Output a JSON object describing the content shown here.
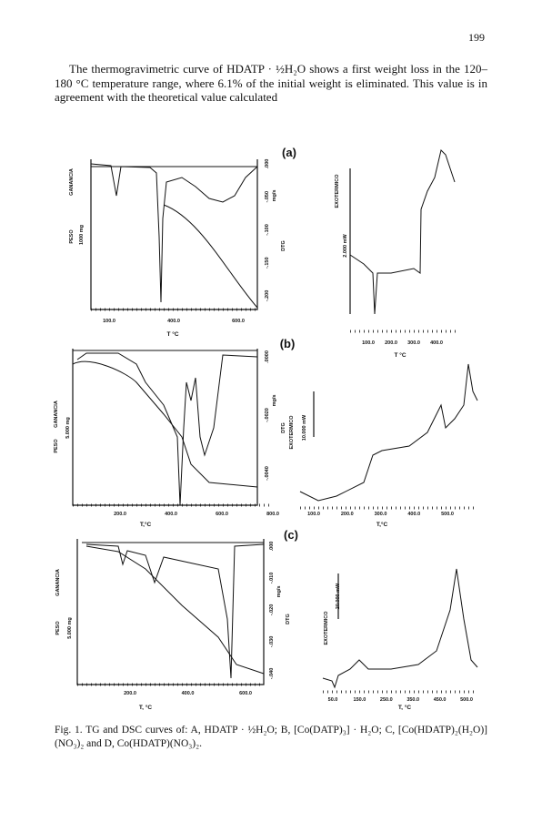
{
  "header": {
    "page_number": "199"
  },
  "body": {
    "paragraph": "The thermogravimetric curve of HDATP · ½H₂O shows a first weight loss in the 120–180 °C temperature range, where 6.1% of the initial weight is eliminated. This value is in agreement with the theoretical value calculated"
  },
  "figure": {
    "panels": [
      {
        "label": "(a)",
        "tg": {
          "x_ticks": [
            "100.0",
            "400.0",
            "600.0"
          ],
          "x_label": "T °C",
          "y_label": "PESO",
          "y_direction": "GANANCIA",
          "y_scale": "1000 mg",
          "dtg_ticks": [
            ".000",
            "-.050",
            "-.100",
            "-.150",
            "-.200"
          ],
          "dtg_units": "mg/s",
          "dtg_label": "DTG"
        },
        "dsc": {
          "x_ticks": [
            "100.0",
            "200.0",
            "300.0",
            "400.0"
          ],
          "x_label": "T °C",
          "y_label": "EXOTERMICO",
          "y_scale": "2.000 mW"
        }
      },
      {
        "label": "(b)",
        "tg": {
          "x_ticks": [
            "200.0",
            "400.0",
            "600.0",
            "800.0"
          ],
          "x_label": "T,°C",
          "y_label": "PESO",
          "y_direction": "GANANCIA",
          "y_scale": "5.000 mg",
          "dtg_ticks": [
            ".0000",
            "-.0020",
            "-.0040"
          ],
          "dtg_units": "mg/s",
          "dtg_label": "DTG"
        },
        "dsc": {
          "x_ticks": [
            "100.0",
            "200.0",
            "300.0",
            "400.0",
            "500.0"
          ],
          "x_label": "T,°C",
          "y_label": "EXOTERMICO",
          "y_scale": "10.000 mW"
        }
      },
      {
        "label": "(c)",
        "tg": {
          "x_ticks": [
            "200.0",
            "400.0",
            "600.0"
          ],
          "x_label": "T, °C",
          "y_label": "PESO",
          "y_direction": "GANANCIA",
          "y_scale": "5.000 mg",
          "dtg_ticks": [
            ".000",
            "-.010",
            "-.020",
            "-.030",
            "-.040"
          ],
          "dtg_units": "mg/s",
          "dtg_label": "DTG"
        },
        "dsc": {
          "x_ticks": [
            "50.0",
            "150.0",
            "250.0",
            "350.0",
            "450.0",
            "500.0"
          ],
          "x_label": "T, °C",
          "y_label": "EXOTERMICO",
          "y_scale": "20.000 mW"
        }
      }
    ],
    "caption": "Fig. 1. TG and DSC curves of: A, HDATP · ½H₂O; B, [Co(DATP)₃] · H₂O; C, [Co(HDATP)₂(H₂O)](NO₃)₂ and D, Co(HDATP)(NO₃)₂."
  }
}
